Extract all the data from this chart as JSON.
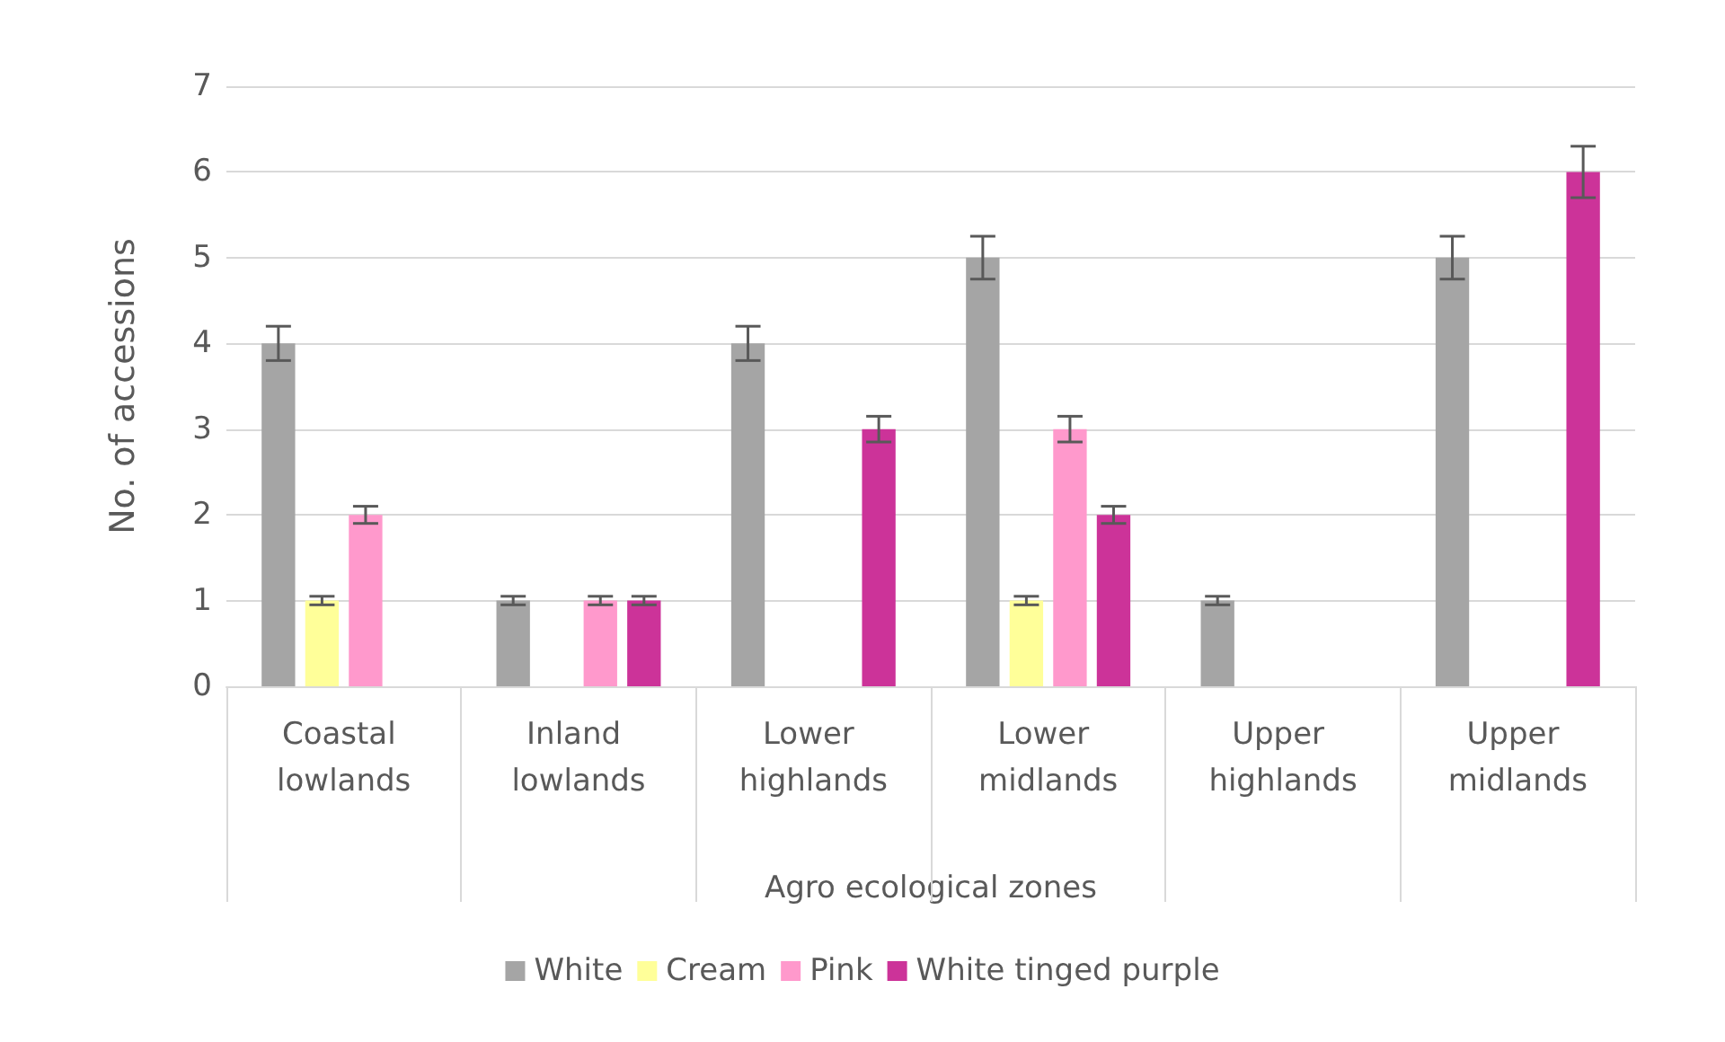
{
  "chart_data": {
    "type": "bar",
    "xlabel": "Agro ecological zones",
    "ylabel": "No. of accessions",
    "categories": [
      "Coastal lowlands",
      "Inland lowlands",
      "Lower highlands",
      "Lower midlands",
      "Upper highlands",
      "Upper midlands"
    ],
    "series": [
      {
        "name": "White",
        "color": "#a5a5a5",
        "values": [
          4,
          1,
          4,
          5,
          1,
          5
        ],
        "errors": [
          0.2,
          0.05,
          0.2,
          0.25,
          0.05,
          0.25
        ]
      },
      {
        "name": "Cream",
        "color": "#ffff99",
        "values": [
          1,
          0,
          0,
          1,
          0,
          0
        ],
        "errors": [
          0.05,
          null,
          null,
          0.05,
          null,
          null
        ]
      },
      {
        "name": "Pink",
        "color": "#ff99cc",
        "values": [
          2,
          1,
          0,
          3,
          0,
          0
        ],
        "errors": [
          0.1,
          0.05,
          null,
          0.15,
          null,
          null
        ]
      },
      {
        "name": "White tinged purple",
        "color": "#cc3399",
        "values": [
          0,
          1,
          3,
          2,
          0,
          6
        ],
        "errors": [
          null,
          0.05,
          0.15,
          0.1,
          null,
          0.3
        ]
      }
    ],
    "ylim": [
      0,
      7
    ],
    "yticks": [
      0,
      1,
      2,
      3,
      4,
      5,
      6,
      7
    ],
    "grid": "y",
    "legend": "bottom"
  }
}
